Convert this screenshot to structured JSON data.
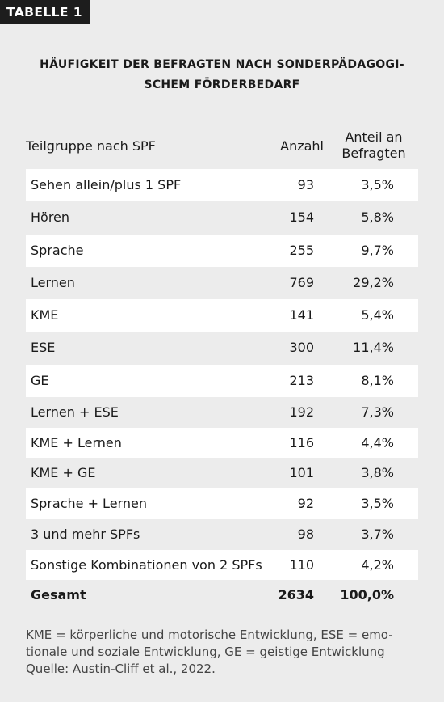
{
  "label": "TABELLE 1",
  "title": {
    "line1": "HÄUFIGKEIT DER BEFRAGTEN NACH SONDERPÄDAGOGI-",
    "line2": "SCHEM FÖRDERBEDARF"
  },
  "table": {
    "headers": {
      "group": "Teilgruppe nach SPF",
      "count": "Anzahl",
      "share_line1": "Anteil an",
      "share_line2": "Befragten"
    },
    "rows": [
      {
        "group": "Sehen allein/plus 1 SPF",
        "count": "93",
        "share": "3,5%"
      },
      {
        "group": "Hören",
        "count": "154",
        "share": "5,8%"
      },
      {
        "group": "Sprache",
        "count": "255",
        "share": "9,7%"
      },
      {
        "group": "Lernen",
        "count": "769",
        "share": "29,2%"
      },
      {
        "group": "KME",
        "count": "141",
        "share": "5,4%"
      },
      {
        "group": "ESE",
        "count": "300",
        "share": "11,4%"
      },
      {
        "group": "GE",
        "count": "213",
        "share": "8,1%"
      },
      {
        "group": "Lernen + ESE",
        "count": "192",
        "share": "7,3%"
      },
      {
        "group": "KME + Lernen",
        "count": "116",
        "share": "4,4%"
      },
      {
        "group": "KME + GE",
        "count": "101",
        "share": "3,8%"
      },
      {
        "group": "Sprache + Lernen",
        "count": "92",
        "share": "3,5%"
      },
      {
        "group": "3 und mehr SPFs",
        "count": "98",
        "share": "3,7%"
      },
      {
        "group": "Sonstige Kombinationen von 2 SPFs",
        "count": "110",
        "share": "4,2%"
      }
    ],
    "total": {
      "group": "Gesamt",
      "count": "2634",
      "share": "100,0%"
    }
  },
  "footnote": {
    "line1": "KME = körperliche und motorische Entwicklung, ESE = emo-",
    "line2": "tionale und soziale Entwicklung, GE = geistige Entwicklung",
    "line3": "Quelle: Austin-Cliff et al., 2022."
  },
  "colors": {
    "background": "#ececec",
    "row_stripe": "#ffffff",
    "tab_background": "#1d1d1d"
  }
}
